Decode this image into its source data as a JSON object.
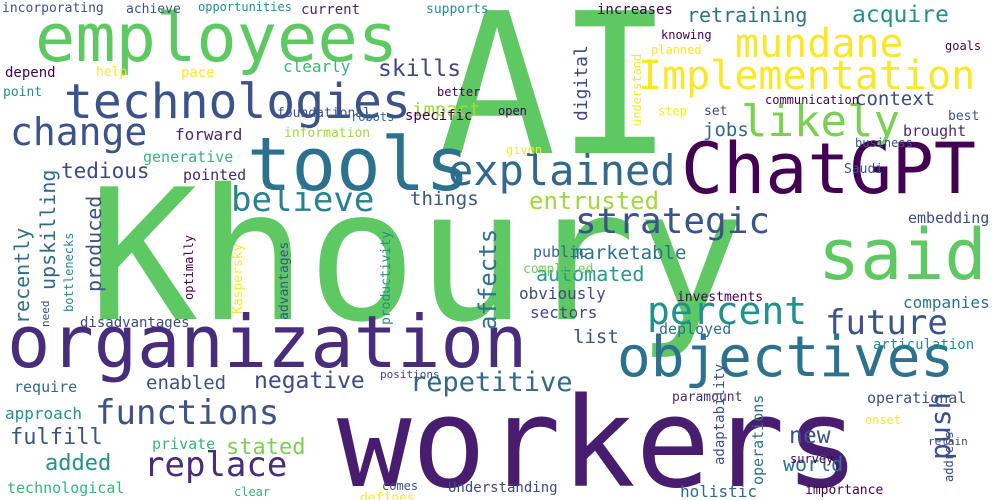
{
  "palette": {
    "background": "#ffffff",
    "dark_purple": "#440154",
    "indigo": "#3b528b",
    "teal": "#21918c",
    "green": "#5ec962",
    "yellow": "#fde725"
  },
  "words": [
    {
      "text": "AI",
      "color": "#5ec962"
    },
    {
      "text": "Khoury",
      "color": "#5ec962"
    },
    {
      "text": "workers",
      "color": "#481c6e"
    },
    {
      "text": "organization",
      "color": "#472d7b"
    },
    {
      "text": "employees",
      "color": "#5ec962"
    },
    {
      "text": "tools",
      "color": "#2c728e"
    },
    {
      "text": "ChatGPT",
      "color": "#440154"
    },
    {
      "text": "said",
      "color": "#5ec962"
    },
    {
      "text": "objectives",
      "color": "#2c728e"
    },
    {
      "text": "technologies",
      "color": "#3b528b"
    },
    {
      "text": "explained",
      "color": "#31688e"
    },
    {
      "text": "Implementation",
      "color": "#fde725"
    },
    {
      "text": "mundane",
      "color": "#fde725"
    },
    {
      "text": "likely",
      "color": "#7ad151"
    },
    {
      "text": "change",
      "color": "#3b528b"
    },
    {
      "text": "strategic",
      "color": "#3b528b"
    },
    {
      "text": "believe",
      "color": "#26828e"
    },
    {
      "text": "percent",
      "color": "#21918c"
    },
    {
      "text": "future",
      "color": "#3b528b"
    },
    {
      "text": "functions",
      "color": "#3b528b"
    },
    {
      "text": "replace",
      "color": "#472d7b"
    },
    {
      "text": "repetitive",
      "color": "#31688e"
    },
    {
      "text": "negative",
      "color": "#3e4989"
    },
    {
      "text": "entrusted",
      "color": "#a0da39"
    },
    {
      "text": "retraining",
      "color": "#2c728e"
    },
    {
      "text": "acquire",
      "color": "#21918c"
    },
    {
      "text": "skills",
      "color": "#3e4989"
    },
    {
      "text": "impact",
      "color": "#a0da39"
    },
    {
      "text": "context",
      "color": "#3e4989"
    },
    {
      "text": "jobs",
      "color": "#31688e"
    },
    {
      "text": "things",
      "color": "#3b528b"
    },
    {
      "text": "tedious",
      "color": "#3e4989"
    },
    {
      "text": "automated",
      "color": "#1f9e89"
    },
    {
      "text": "marketable",
      "color": "#2c728e"
    },
    {
      "text": "push",
      "color": "#3b528b"
    },
    {
      "text": "new",
      "color": "#3b528b"
    },
    {
      "text": "world",
      "color": "#2c728e"
    },
    {
      "text": "added",
      "color": "#21918c"
    },
    {
      "text": "fulfill",
      "color": "#3b528b"
    },
    {
      "text": "stated",
      "color": "#7ad151"
    },
    {
      "text": "enabled",
      "color": "#3b528b"
    },
    {
      "text": "list",
      "color": "#3b528b"
    },
    {
      "text": "affects",
      "color": "#2c728e"
    },
    {
      "text": "upskilling",
      "color": "#31688e"
    },
    {
      "text": "recently",
      "color": "#2c728e"
    },
    {
      "text": "produced",
      "color": "#3b528b"
    },
    {
      "text": "digital",
      "color": "#3e4989"
    },
    {
      "text": "generative",
      "color": "#35b779"
    },
    {
      "text": "forward",
      "color": "#482878"
    },
    {
      "text": "pointed",
      "color": "#482878"
    },
    {
      "text": "brought",
      "color": "#472d7b"
    },
    {
      "text": "communication",
      "color": "#440154"
    },
    {
      "text": "embedding",
      "color": "#3e4989"
    },
    {
      "text": "obviously",
      "color": "#3e4989"
    },
    {
      "text": "sectors",
      "color": "#3e4989"
    },
    {
      "text": "public",
      "color": "#31688e"
    },
    {
      "text": "completed",
      "color": "#6ece58"
    },
    {
      "text": "companies",
      "color": "#2c728e"
    },
    {
      "text": "deployed",
      "color": "#2c728e"
    },
    {
      "text": "investments",
      "color": "#440154"
    },
    {
      "text": "articulation",
      "color": "#21918c"
    },
    {
      "text": "operational",
      "color": "#3b528b"
    },
    {
      "text": "paramount",
      "color": "#472d7b"
    },
    {
      "text": "approach",
      "color": "#21918c"
    },
    {
      "text": "require",
      "color": "#31688e"
    },
    {
      "text": "private",
      "color": "#35b779"
    },
    {
      "text": "technological",
      "color": "#35b779"
    },
    {
      "text": "Understanding",
      "color": "#3e4989"
    },
    {
      "text": "holistic",
      "color": "#31688e"
    },
    {
      "text": "clearly",
      "color": "#35b779"
    },
    {
      "text": "pace",
      "color": "#fde725"
    },
    {
      "text": "help",
      "color": "#fde725"
    },
    {
      "text": "depend",
      "color": "#440154"
    },
    {
      "text": "point",
      "color": "#21918c"
    },
    {
      "text": "incorporating",
      "color": "#3b528b"
    },
    {
      "text": "achieve",
      "color": "#3b528b"
    },
    {
      "text": "opportunities",
      "color": "#21918c"
    },
    {
      "text": "current",
      "color": "#482878"
    },
    {
      "text": "supports",
      "color": "#21918c"
    },
    {
      "text": "increases",
      "color": "#440154"
    },
    {
      "text": "knowing",
      "color": "#440154"
    },
    {
      "text": "goals",
      "color": "#440154"
    },
    {
      "text": "planned",
      "color": "#fde725"
    },
    {
      "text": "foundational",
      "color": "#3b528b"
    },
    {
      "text": "information",
      "color": "#a0da39"
    },
    {
      "text": "robots",
      "color": "#31688e"
    },
    {
      "text": "specific",
      "color": "#440154"
    },
    {
      "text": "better",
      "color": "#440154"
    },
    {
      "text": "open",
      "color": "#440154"
    },
    {
      "text": "step",
      "color": "#fde725"
    },
    {
      "text": "set",
      "color": "#3e4989"
    },
    {
      "text": "best",
      "color": "#3b528b"
    },
    {
      "text": "business",
      "color": "#3b528b"
    },
    {
      "text": "Saudi",
      "color": "#3b528b"
    },
    {
      "text": "given",
      "color": "#fde725"
    },
    {
      "text": "understand",
      "color": "#fde725"
    },
    {
      "text": "bottlenecks",
      "color": "#21918c"
    },
    {
      "text": "optimally",
      "color": "#440154"
    },
    {
      "text": "Kaspersky",
      "color": "#fde725"
    },
    {
      "text": "advantages",
      "color": "#3b528b"
    },
    {
      "text": "productivity",
      "color": "#21918c"
    },
    {
      "text": "disadvantages",
      "color": "#3e4989"
    },
    {
      "text": "need",
      "color": "#3b528b"
    },
    {
      "text": "positions",
      "color": "#3e4989"
    },
    {
      "text": "clear",
      "color": "#35b779"
    },
    {
      "text": "comes",
      "color": "#3e4989"
    },
    {
      "text": "defines",
      "color": "#fde725"
    },
    {
      "text": "importance",
      "color": "#440154"
    },
    {
      "text": "survey",
      "color": "#440154"
    },
    {
      "text": "onset",
      "color": "#fde725"
    },
    {
      "text": "retain",
      "color": "#3e4989"
    },
    {
      "text": "address",
      "color": "#3e4989"
    },
    {
      "text": "operations",
      "color": "#2c728e"
    },
    {
      "text": "adaptability",
      "color": "#3b528b"
    }
  ]
}
